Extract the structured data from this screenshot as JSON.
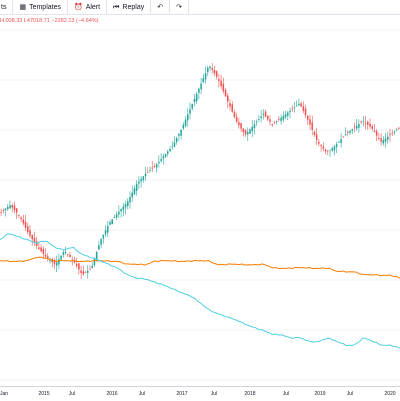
{
  "toolbar": {
    "items": [
      {
        "name": "indicators",
        "label": "ts",
        "icon": "indicators-icon"
      },
      {
        "name": "templates",
        "label": "Templates",
        "icon": "templates-icon"
      },
      {
        "name": "alert",
        "label": "Alert",
        "icon": "alarm-clock-icon"
      },
      {
        "name": "replay",
        "label": "Replay",
        "icon": "replay-icon"
      },
      {
        "name": "undo",
        "label": "",
        "icon": "undo-icon"
      },
      {
        "name": "redo",
        "label": "",
        "icon": "redo-icon"
      }
    ]
  },
  "legend": {
    "ohlc_text": "H.008.33 L47018.71 −2282.13 (−4.64%)"
  },
  "colors": {
    "up": "#26a69a",
    "down": "#ef5350",
    "ma_fast": "#4dd0e1",
    "ma_slow": "#f57c00",
    "grid": "#f0f3fa"
  },
  "x_axis": {
    "ticks": [
      {
        "label": "Jan",
        "pos": 0.01
      },
      {
        "label": "2015",
        "pos": 0.11
      },
      {
        "label": "Jul",
        "pos": 0.18
      },
      {
        "label": "2016",
        "pos": 0.28
      },
      {
        "label": "Jul",
        "pos": 0.355
      },
      {
        "label": "2017",
        "pos": 0.455
      },
      {
        "label": "Jul",
        "pos": 0.535
      },
      {
        "label": "2018",
        "pos": 0.625
      },
      {
        "label": "Jul",
        "pos": 0.715
      },
      {
        "label": "2019",
        "pos": 0.8
      },
      {
        "label": "Jul",
        "pos": 0.875
      },
      {
        "label": "2020",
        "pos": 0.975
      }
    ]
  },
  "chart_data": {
    "type": "line",
    "description_series": [
      "Price (candles)",
      "Moving average (cyan)",
      "Moving average (orange)"
    ],
    "price_trend": [
      0.52,
      0.5,
      0.53,
      0.58,
      0.62,
      0.65,
      0.67,
      0.63,
      0.66,
      0.7,
      0.68,
      0.6,
      0.55,
      0.52,
      0.49,
      0.44,
      0.41,
      0.39,
      0.36,
      0.33,
      0.28,
      0.22,
      0.16,
      0.1,
      0.14,
      0.2,
      0.26,
      0.3,
      0.27,
      0.24,
      0.27,
      0.25,
      0.23,
      0.21,
      0.26,
      0.32,
      0.35,
      0.33,
      0.3,
      0.28,
      0.26,
      0.28,
      0.32,
      0.3,
      0.28
    ],
    "ma_fast_trend": [
      0.6,
      0.58,
      0.59,
      0.6,
      0.61,
      0.6,
      0.62,
      0.63,
      0.62,
      0.64,
      0.65,
      0.66,
      0.67,
      0.68,
      0.7,
      0.71,
      0.71,
      0.72,
      0.73,
      0.74,
      0.75,
      0.76,
      0.78,
      0.8,
      0.81,
      0.82,
      0.83,
      0.84,
      0.85,
      0.86,
      0.87,
      0.87,
      0.88,
      0.88,
      0.89,
      0.89,
      0.88,
      0.89,
      0.9,
      0.9,
      0.88,
      0.89,
      0.9,
      0.9,
      0.91
    ],
    "ma_slow_trend": [
      0.66,
      0.66,
      0.66,
      0.66,
      0.65,
      0.65,
      0.66,
      0.66,
      0.66,
      0.66,
      0.66,
      0.66,
      0.66,
      0.66,
      0.67,
      0.67,
      0.67,
      0.66,
      0.66,
      0.66,
      0.66,
      0.66,
      0.66,
      0.66,
      0.67,
      0.67,
      0.67,
      0.67,
      0.67,
      0.67,
      0.68,
      0.68,
      0.68,
      0.68,
      0.68,
      0.68,
      0.68,
      0.69,
      0.69,
      0.69,
      0.7,
      0.7,
      0.7,
      0.7,
      0.71
    ]
  }
}
